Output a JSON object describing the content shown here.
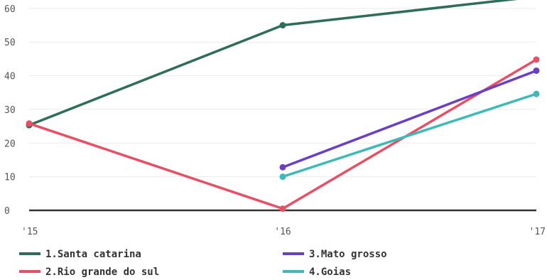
{
  "chart_data": {
    "type": "line",
    "title": "",
    "xlabel": "",
    "ylabel": "",
    "x": [
      "'15",
      "'16",
      "'17"
    ],
    "ylim": [
      0,
      62.5
    ],
    "yticks": [
      "0",
      "10",
      "20",
      "30",
      "40",
      "50",
      "60"
    ],
    "grid": true,
    "legend_position": "bottom",
    "series": [
      {
        "name": "1.Santa catarina",
        "color": "#2e6e58",
        "values": [
          25.3,
          55.0,
          63.5
        ]
      },
      {
        "name": "2.Rio grande do sul",
        "color": "#e94f64",
        "values": [
          25.8,
          0.5,
          44.8
        ]
      },
      {
        "name": "3.Mato grosso",
        "color": "#6a3fc4",
        "values": [
          null,
          12.8,
          41.5
        ]
      },
      {
        "name": "4.Goias",
        "color": "#3dbab8",
        "values": [
          null,
          10.0,
          34.6
        ]
      }
    ]
  }
}
